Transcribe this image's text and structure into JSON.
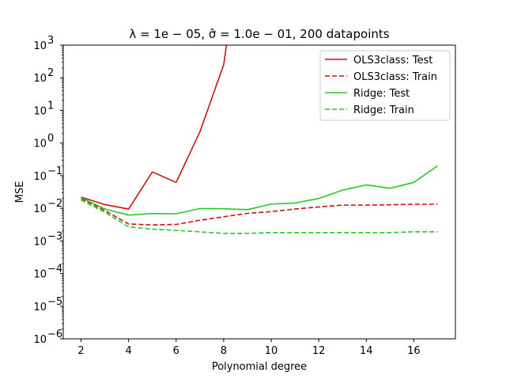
{
  "chart_data": {
    "type": "line",
    "title": "λ = 1e − 05, σ̂ = 1.0e − 01, 200 datapoints",
    "xlabel": "Polynomial degree",
    "ylabel": "MSE",
    "yscale": "log",
    "xlim": [
      1.25,
      17.75
    ],
    "ylim": [
      1e-06,
      1000.0
    ],
    "xticks": [
      2,
      4,
      6,
      8,
      10,
      12,
      14,
      16
    ],
    "xtick_labels": [
      "2",
      "4",
      "6",
      "8",
      "10",
      "12",
      "14",
      "16"
    ],
    "yticks": [
      1e-06,
      1e-05,
      0.0001,
      0.001,
      0.01,
      0.1,
      1.0,
      10.0,
      100.0,
      1000.0
    ],
    "ytick_base": [
      "10",
      "10",
      "10",
      "10",
      "10",
      "10",
      "10",
      "10",
      "10",
      "10"
    ],
    "ytick_exp": [
      "−6",
      "−5",
      "−4",
      "−3",
      "−2",
      "−1",
      "0",
      "1",
      "2",
      "3"
    ],
    "grid": false,
    "legend_position": "top-right",
    "series": [
      {
        "name": "OLS3class: Test",
        "color": "#cc1111",
        "dash": "solid",
        "x": [
          2,
          3,
          4,
          5,
          6,
          7,
          8,
          9
        ],
        "y": [
          0.022,
          0.013,
          0.0095,
          0.13,
          0.062,
          2.2,
          250,
          30000000.0
        ]
      },
      {
        "name": "OLS3class: Train",
        "color": "#cc1111",
        "dash": "dashed",
        "x": [
          2,
          3,
          4,
          5,
          6,
          7,
          8,
          9,
          10,
          11,
          12,
          13,
          14,
          15,
          16,
          17
        ],
        "y": [
          0.02,
          0.0085,
          0.0033,
          0.0031,
          0.0032,
          0.0043,
          0.0055,
          0.007,
          0.0079,
          0.0095,
          0.011,
          0.0125,
          0.0125,
          0.0128,
          0.0133,
          0.0133
        ]
      },
      {
        "name": "Ridge: Test",
        "color": "#22cc22",
        "dash": "solid",
        "x": [
          2,
          3,
          4,
          5,
          6,
          7,
          8,
          9,
          10,
          11,
          12,
          13,
          14,
          15,
          16,
          17
        ],
        "y": [
          0.021,
          0.0095,
          0.0062,
          0.0069,
          0.0068,
          0.0098,
          0.0097,
          0.0091,
          0.0135,
          0.0145,
          0.02,
          0.036,
          0.052,
          0.041,
          0.062,
          0.2
        ]
      },
      {
        "name": "Ridge: Train",
        "color": "#22cc22",
        "dash": "dashed",
        "x": [
          2,
          3,
          4,
          5,
          6,
          7,
          8,
          9,
          10,
          11,
          12,
          13,
          14,
          15,
          16,
          17
        ],
        "y": [
          0.018,
          0.0075,
          0.0027,
          0.0023,
          0.0021,
          0.0019,
          0.0017,
          0.0017,
          0.0018,
          0.0018,
          0.0018,
          0.0018,
          0.0018,
          0.0018,
          0.0019,
          0.0019
        ]
      }
    ]
  }
}
